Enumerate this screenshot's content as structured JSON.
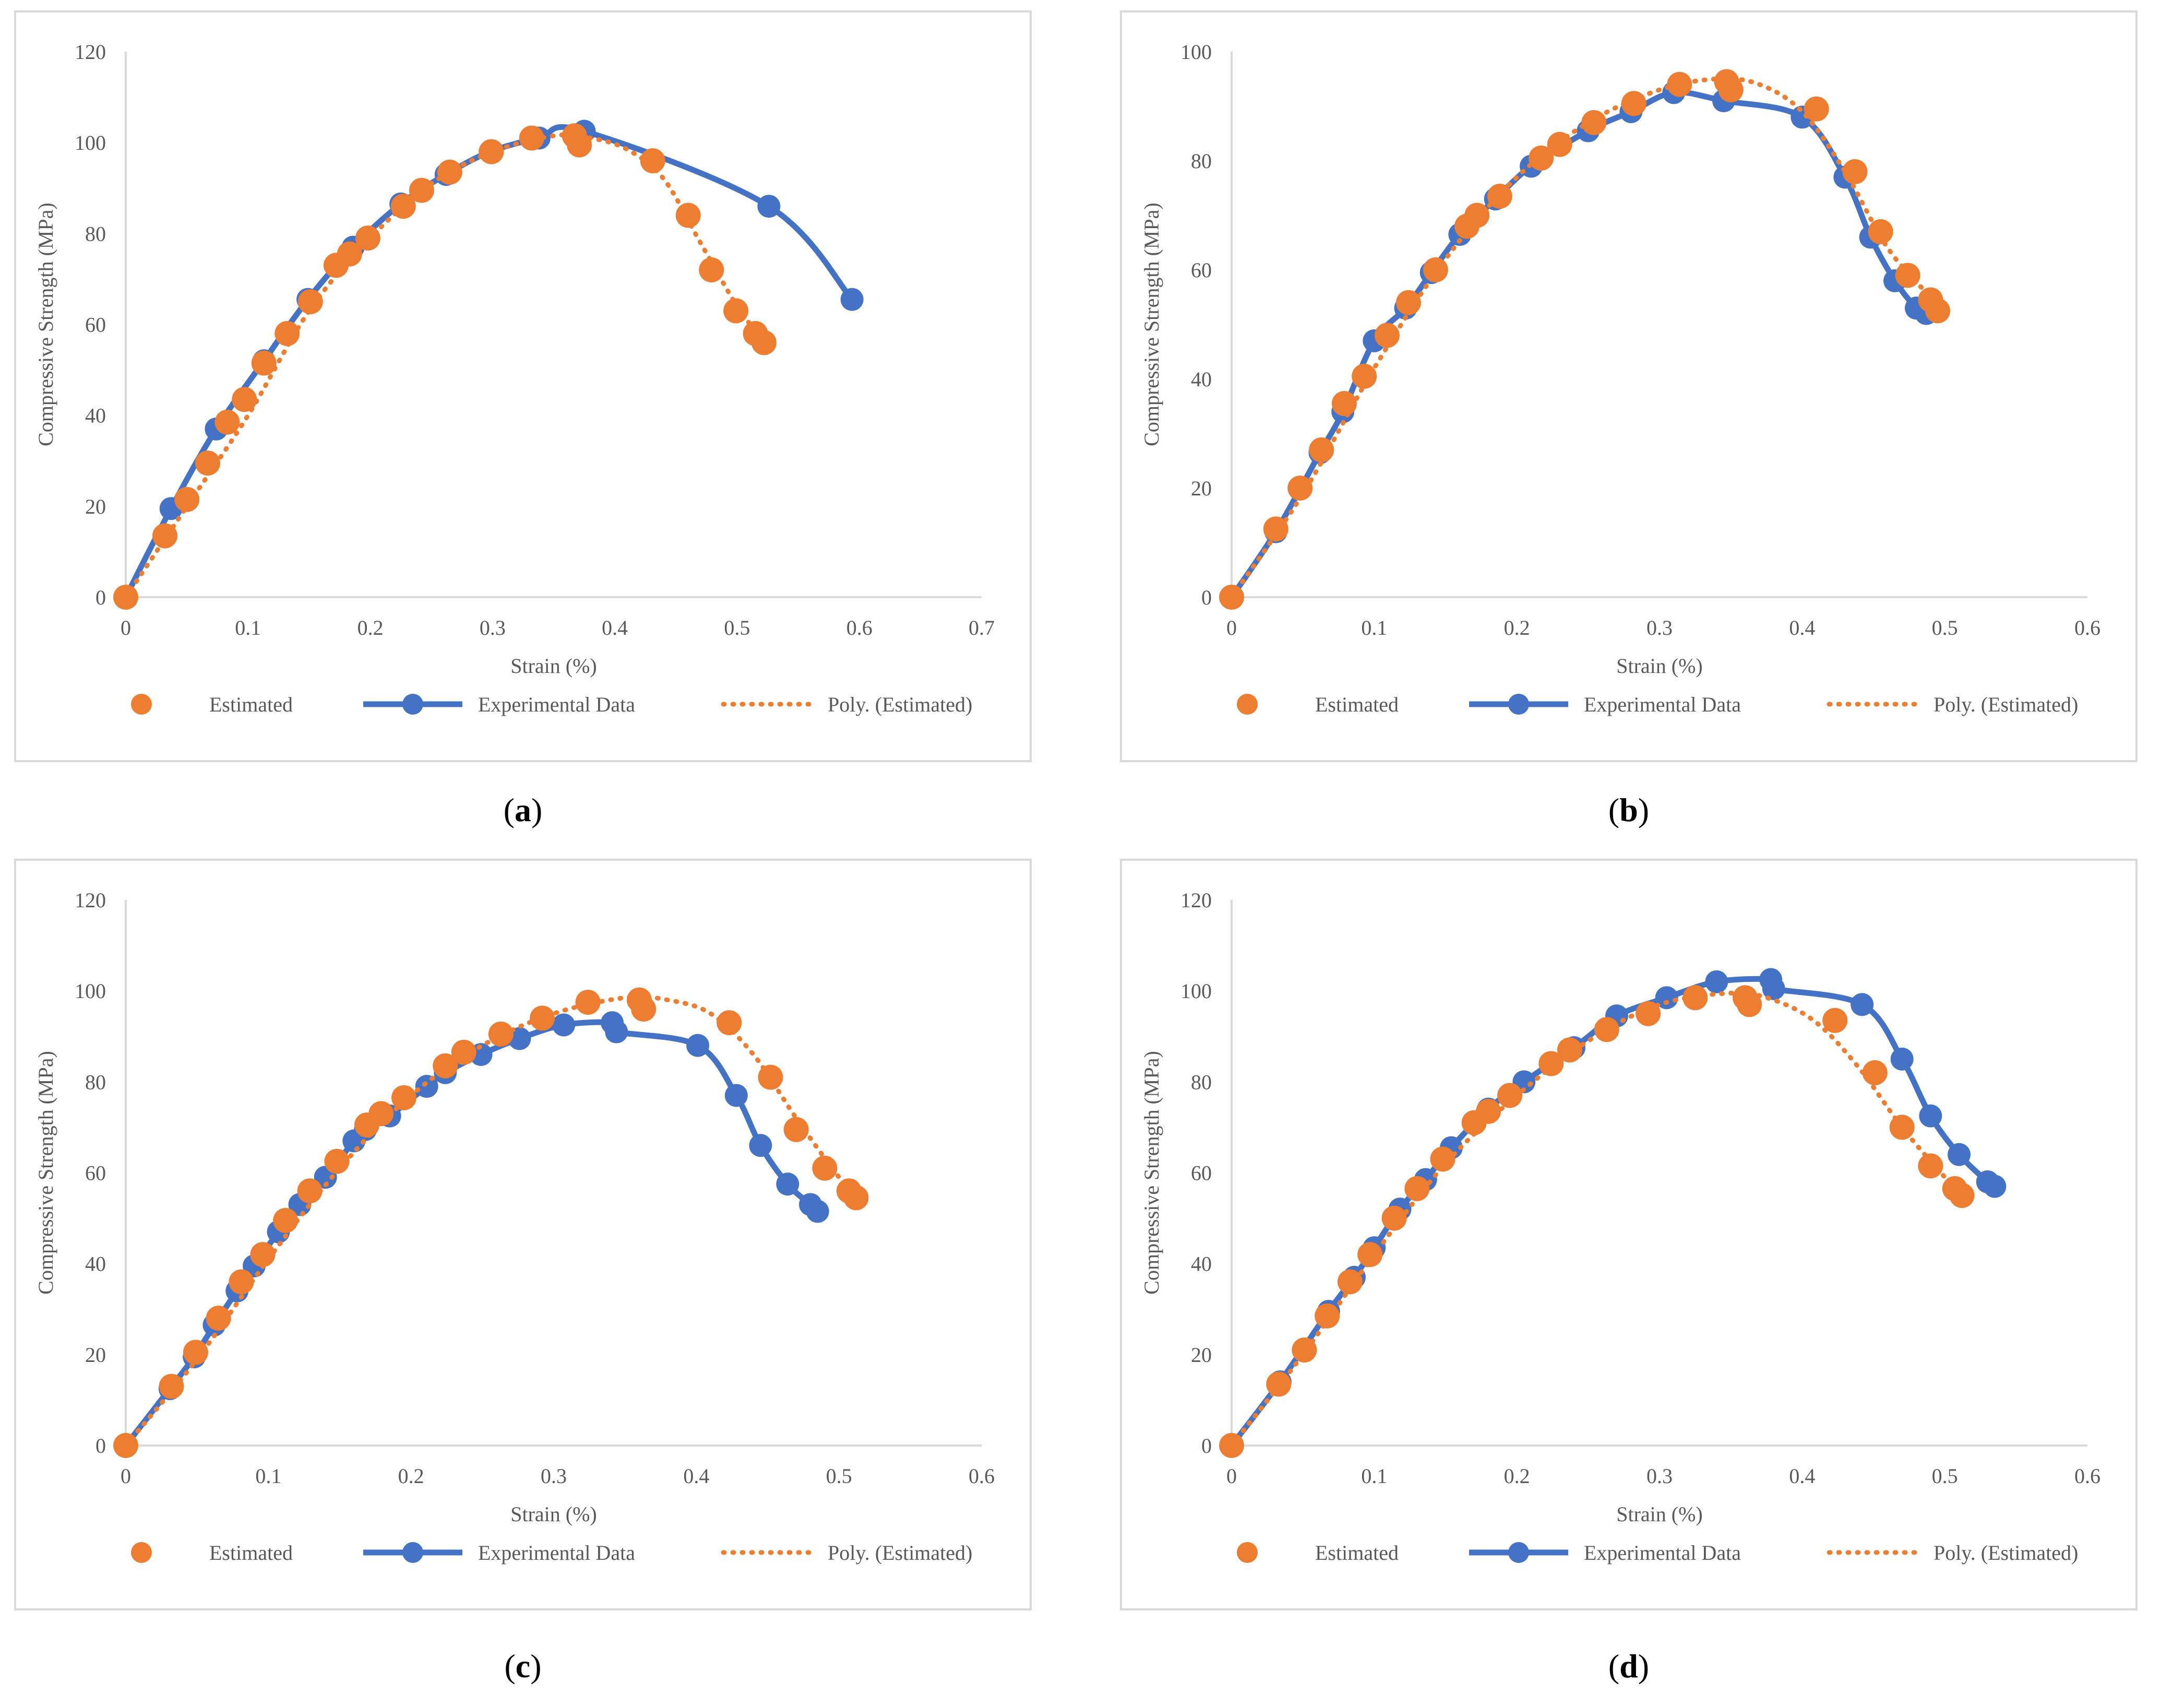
{
  "colors": {
    "estimated": "#ED7D31",
    "experimental": "#4472C4",
    "axis": "#d9d9d9",
    "text": "#595959"
  },
  "chart_data": [
    {
      "id": "a",
      "type": "scatter",
      "caption_letter": "a",
      "xlabel": "Strain (%)",
      "ylabel": "Compressive Strength (MPa)",
      "xlim": [
        0,
        0.7
      ],
      "ylim": [
        0,
        120
      ],
      "xticks": [
        "0",
        "0.1",
        "0.2",
        "0.3",
        "0.4",
        "0.5",
        "0.6",
        "0.7"
      ],
      "yticks": [
        "0",
        "20",
        "40",
        "60",
        "80",
        "100",
        "120"
      ],
      "legend": {
        "placement": "bottom",
        "entries": [
          "Estimated",
          "Experimental Data",
          "Poly. (Estimated)"
        ]
      },
      "series": [
        {
          "name": "Estimated",
          "kind": "points",
          "x": [
            0,
            0.032,
            0.05,
            0.067,
            0.083,
            0.097,
            0.113,
            0.132,
            0.151,
            0.172,
            0.183,
            0.198,
            0.227,
            0.242,
            0.265,
            0.299,
            0.332,
            0.367,
            0.371,
            0.431,
            0.46,
            0.479,
            0.499,
            0.515,
            0.522
          ],
          "y": [
            0,
            13.5,
            21.5,
            29.5,
            38.5,
            43.5,
            51.5,
            58,
            65,
            73,
            75.5,
            79,
            86,
            89.5,
            93.5,
            98,
            101,
            101.5,
            99.5,
            96,
            84,
            72,
            63,
            58,
            56
          ]
        },
        {
          "name": "Experimental Data",
          "kind": "line",
          "x": [
            0,
            0.037,
            0.074,
            0.113,
            0.149,
            0.186,
            0.225,
            0.262,
            0.298,
            0.338,
            0.375,
            0.526,
            0.594
          ],
          "y": [
            0,
            19.5,
            37,
            52,
            65.5,
            77,
            86.5,
            93,
            98,
            101,
            102.5,
            86,
            65.5
          ]
        },
        {
          "name": "Poly. (Estimated)",
          "kind": "dotted",
          "x": [
            0,
            0.05,
            0.1,
            0.15,
            0.2,
            0.25,
            0.3,
            0.35,
            0.38,
            0.41,
            0.44,
            0.47,
            0.5,
            0.52
          ],
          "y": [
            0,
            20,
            40,
            63,
            79,
            91,
            98,
            101.5,
            101,
            98.5,
            92,
            78,
            64,
            57
          ]
        }
      ]
    },
    {
      "id": "b",
      "type": "scatter",
      "caption_letter": "b",
      "xlabel": "Strain (%)",
      "ylabel": "Compressive Strength (MPa)",
      "xlim": [
        0,
        0.6
      ],
      "ylim": [
        0,
        100
      ],
      "xticks": [
        "0",
        "0.1",
        "0.2",
        "0.3",
        "0.4",
        "0.5",
        "0.6"
      ],
      "yticks": [
        "0",
        "20",
        "40",
        "60",
        "80",
        "100"
      ],
      "legend": {
        "placement": "bottom",
        "entries": [
          "Estimated",
          "Experimental Data",
          "Poly. (Estimated)"
        ]
      },
      "series": [
        {
          "name": "Estimated",
          "kind": "points",
          "x": [
            0,
            0.031,
            0.048,
            0.063,
            0.079,
            0.093,
            0.109,
            0.124,
            0.143,
            0.165,
            0.172,
            0.188,
            0.217,
            0.23,
            0.254,
            0.282,
            0.314,
            0.347,
            0.35,
            0.41,
            0.437,
            0.455,
            0.474,
            0.49,
            0.495
          ],
          "y": [
            0,
            12.5,
            20,
            27,
            35.5,
            40.5,
            48,
            54,
            60,
            68,
            70,
            73.5,
            80.5,
            83,
            87,
            90.5,
            94,
            94.5,
            93,
            89.5,
            78,
            67,
            59,
            54.5,
            52.5
          ]
        },
        {
          "name": "Experimental Data",
          "kind": "line",
          "x": [
            0,
            0.031,
            0.062,
            0.078,
            0.1,
            0.122,
            0.14,
            0.16,
            0.185,
            0.21,
            0.25,
            0.28,
            0.31,
            0.345,
            0.4,
            0.43,
            0.448,
            0.465,
            0.48,
            0.487
          ],
          "y": [
            0,
            12,
            26.5,
            34,
            47,
            53,
            59.5,
            66.5,
            73,
            79,
            85.5,
            89,
            92.5,
            91,
            88,
            77,
            66,
            58,
            53,
            52
          ]
        },
        {
          "name": "Poly. (Estimated)",
          "kind": "dotted",
          "x": [
            0,
            0.05,
            0.1,
            0.15,
            0.2,
            0.25,
            0.3,
            0.34,
            0.37,
            0.4,
            0.43,
            0.46,
            0.49
          ],
          "y": [
            0,
            19,
            42,
            62,
            77,
            87,
            93,
            95,
            94,
            89,
            78,
            64,
            55
          ]
        }
      ]
    },
    {
      "id": "c",
      "type": "scatter",
      "caption_letter": "c",
      "xlabel": "Strain (%)",
      "ylabel": "Compressive  Strength (MPa)",
      "xlim": [
        0,
        0.6
      ],
      "ylim": [
        0,
        120
      ],
      "xticks": [
        "0",
        "0.1",
        "0.2",
        "0.3",
        "0.4",
        "0.5",
        "0.6"
      ],
      "yticks": [
        "0",
        "20",
        "40",
        "60",
        "80",
        "100",
        "120"
      ],
      "legend": {
        "placement": "bottom",
        "entries": [
          "Estimated",
          "Experimental Data",
          "Poly. (Estimated)"
        ]
      },
      "series": [
        {
          "name": "Estimated",
          "kind": "points",
          "x": [
            0,
            0.032,
            0.049,
            0.065,
            0.081,
            0.096,
            0.112,
            0.129,
            0.148,
            0.169,
            0.179,
            0.195,
            0.224,
            0.237,
            0.263,
            0.292,
            0.324,
            0.36,
            0.363,
            0.423,
            0.452,
            0.47,
            0.49,
            0.507,
            0.512
          ],
          "y": [
            0,
            13,
            20.5,
            28,
            36,
            42,
            49.5,
            56,
            62.5,
            70.5,
            73,
            76.5,
            83.5,
            86.5,
            90.5,
            94,
            97.5,
            98,
            96,
            93,
            81,
            69.5,
            61,
            56,
            54.5
          ]
        },
        {
          "name": "Experimental Data",
          "kind": "line",
          "x": [
            0,
            0.031,
            0.048,
            0.062,
            0.078,
            0.09,
            0.107,
            0.122,
            0.14,
            0.16,
            0.168,
            0.185,
            0.211,
            0.224,
            0.249,
            0.276,
            0.307,
            0.341,
            0.344,
            0.401,
            0.428,
            0.445,
            0.464,
            0.48,
            0.485
          ],
          "y": [
            0,
            12.5,
            19.5,
            26.5,
            34,
            39.5,
            47,
            53,
            59,
            67,
            69.5,
            72.5,
            79,
            82,
            86,
            89.5,
            92.5,
            93,
            91,
            88,
            77,
            66,
            57.5,
            53,
            51.5
          ]
        },
        {
          "name": "Poly. (Estimated)",
          "kind": "dotted",
          "x": [
            0,
            0.05,
            0.1,
            0.15,
            0.2,
            0.25,
            0.3,
            0.35,
            0.38,
            0.41,
            0.44,
            0.47,
            0.5,
            0.51
          ],
          "y": [
            0,
            19,
            41,
            61,
            77,
            88,
            95,
            98.5,
            98,
            95,
            86,
            72,
            59,
            56
          ]
        }
      ]
    },
    {
      "id": "d",
      "type": "scatter",
      "caption_letter": "d",
      "xlabel": "Strain (%)",
      "ylabel": "Compressive Strength (MPa)",
      "xlim": [
        0,
        0.6
      ],
      "ylim": [
        0,
        120
      ],
      "xticks": [
        "0",
        "0.1",
        "0.2",
        "0.3",
        "0.4",
        "0.5",
        "0.6"
      ],
      "yticks": [
        "0",
        "20",
        "40",
        "60",
        "80",
        "100",
        "120"
      ],
      "legend": {
        "placement": "bottom",
        "entries": [
          "Estimated",
          "Experimental Data",
          "Poly. (Estimated)"
        ]
      },
      "series": [
        {
          "name": "Estimated",
          "kind": "points",
          "x": [
            0,
            0.033,
            0.051,
            0.067,
            0.083,
            0.097,
            0.114,
            0.13,
            0.148,
            0.17,
            0.18,
            0.195,
            0.224,
            0.237,
            0.263,
            0.292,
            0.325,
            0.36,
            0.363,
            0.423,
            0.451,
            0.47,
            0.49,
            0.507,
            0.512
          ],
          "y": [
            0,
            13.5,
            21,
            28.5,
            36,
            42,
            50,
            56.5,
            63,
            71,
            73.5,
            77,
            84,
            87,
            91.5,
            95,
            98.5,
            98.5,
            97,
            93.5,
            82,
            70,
            61.5,
            56.5,
            55
          ]
        },
        {
          "name": "Experimental Data",
          "kind": "line",
          "x": [
            0,
            0.034,
            0.068,
            0.086,
            0.1,
            0.118,
            0.136,
            0.154,
            0.18,
            0.205,
            0.24,
            0.27,
            0.305,
            0.34,
            0.378,
            0.38,
            0.442,
            0.47,
            0.49,
            0.51,
            0.53,
            0.535
          ],
          "y": [
            0,
            14,
            29.5,
            37,
            43.5,
            52,
            58.5,
            65.5,
            74,
            80,
            87.5,
            94.5,
            98.5,
            102,
            102.5,
            100.5,
            97,
            85,
            72.5,
            64,
            58,
            57
          ]
        },
        {
          "name": "Poly. (Estimated)",
          "kind": "dotted",
          "x": [
            0,
            0.05,
            0.1,
            0.15,
            0.2,
            0.25,
            0.3,
            0.35,
            0.38,
            0.41,
            0.44,
            0.47,
            0.5,
            0.51
          ],
          "y": [
            0,
            20,
            42,
            62,
            77,
            89,
            97,
            99.5,
            98,
            93,
            83,
            70,
            59,
            56
          ]
        }
      ]
    }
  ]
}
